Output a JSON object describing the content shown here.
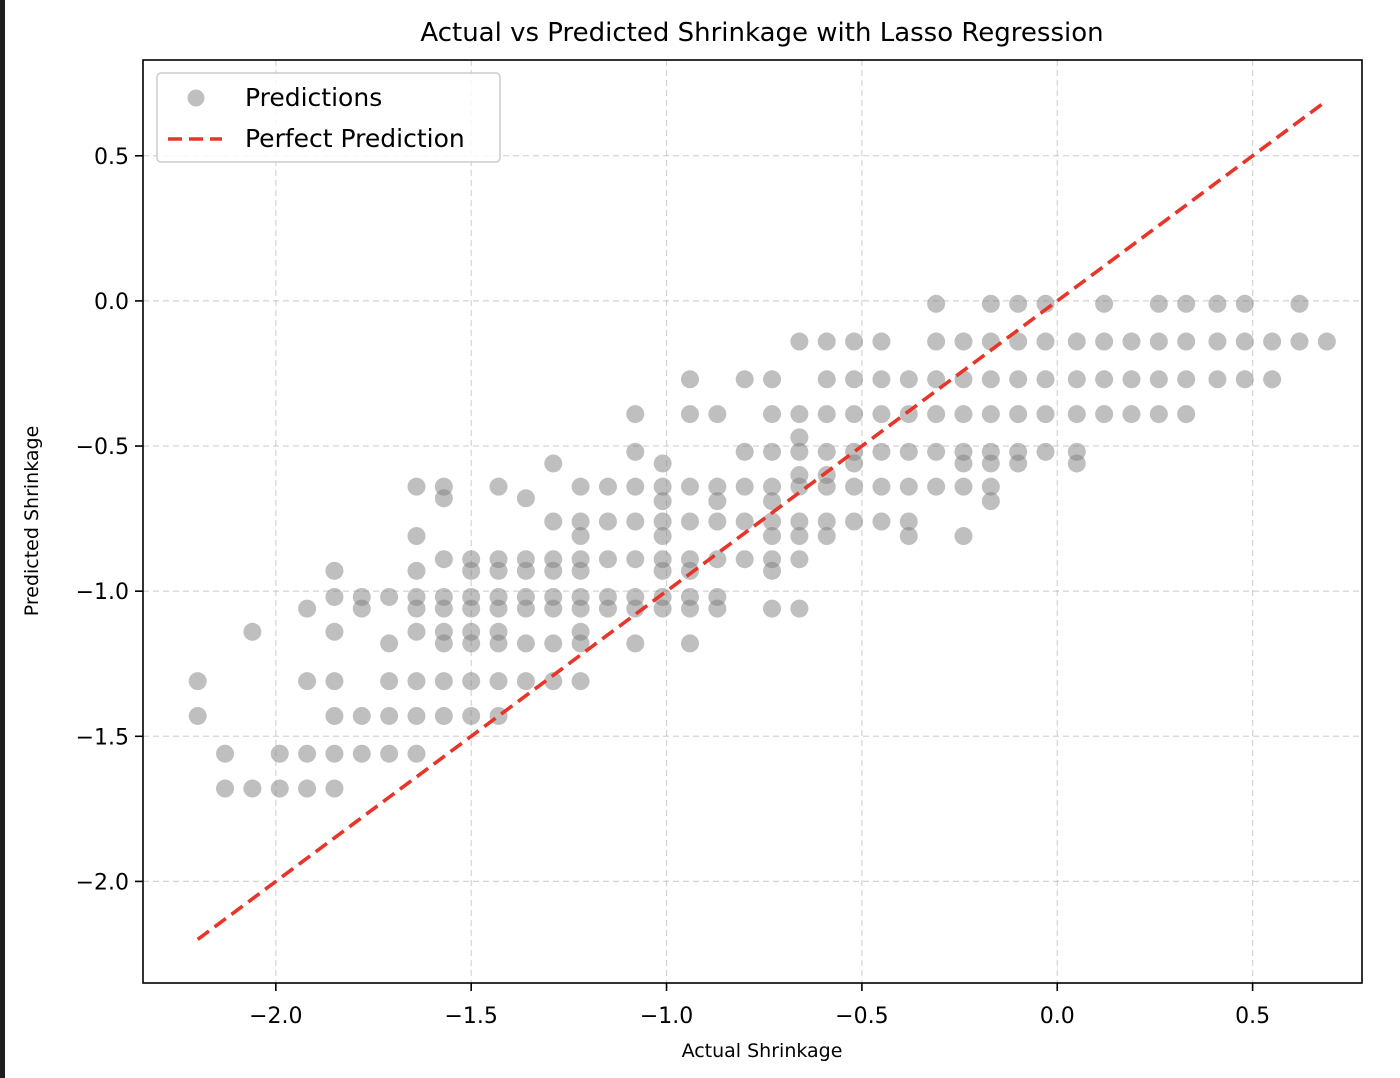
{
  "chart_data": {
    "type": "scatter",
    "title": "Actual vs Predicted Shrinkage with Lasso Regression",
    "xlabel": "Actual Shrinkage",
    "ylabel": "Predicted Shrinkage",
    "xlim": [
      -2.34,
      0.78
    ],
    "ylim": [
      -2.35,
      0.83
    ],
    "x_ticks": [
      -2.0,
      -1.5,
      -1.0,
      -0.5,
      0.0,
      0.5
    ],
    "y_ticks": [
      -2.0,
      -1.5,
      -1.0,
      -0.5,
      0.0,
      0.5
    ],
    "x_tick_labels": [
      "−2.0",
      "−1.5",
      "−1.0",
      "−0.5",
      "0.0",
      "0.5"
    ],
    "y_tick_labels": [
      "−2.0",
      "−1.5",
      "−1.0",
      "−0.5",
      "0.0",
      "0.5"
    ],
    "grid": true,
    "legend_position": "top-left",
    "series": [
      {
        "name": "Predictions",
        "kind": "scatter",
        "color": "#808080",
        "alpha": 0.5,
        "points": [
          [
            -2.2,
            -1.31
          ],
          [
            -2.2,
            -1.43
          ],
          [
            -2.13,
            -1.56
          ],
          [
            -2.13,
            -1.68
          ],
          [
            -2.06,
            -1.68
          ],
          [
            -2.06,
            -1.14
          ],
          [
            -1.99,
            -1.56
          ],
          [
            -1.99,
            -1.68
          ],
          [
            -1.92,
            -1.56
          ],
          [
            -1.92,
            -1.68
          ],
          [
            -1.92,
            -1.31
          ],
          [
            -1.92,
            -1.06
          ],
          [
            -1.85,
            -1.56
          ],
          [
            -1.85,
            -1.68
          ],
          [
            -1.85,
            -1.43
          ],
          [
            -1.85,
            -1.31
          ],
          [
            -1.85,
            -1.14
          ],
          [
            -1.85,
            -1.02
          ],
          [
            -1.85,
            -0.93
          ],
          [
            -1.78,
            -1.56
          ],
          [
            -1.78,
            -1.43
          ],
          [
            -1.78,
            -1.02
          ],
          [
            -1.78,
            -1.06
          ],
          [
            -1.71,
            -1.56
          ],
          [
            -1.71,
            -1.43
          ],
          [
            -1.71,
            -1.31
          ],
          [
            -1.71,
            -1.18
          ],
          [
            -1.71,
            -1.02
          ],
          [
            -1.64,
            -1.56
          ],
          [
            -1.64,
            -1.43
          ],
          [
            -1.64,
            -1.31
          ],
          [
            -1.64,
            -1.14
          ],
          [
            -1.64,
            -1.02
          ],
          [
            -1.64,
            -1.06
          ],
          [
            -1.64,
            -0.93
          ],
          [
            -1.64,
            -0.81
          ],
          [
            -1.64,
            -0.64
          ],
          [
            -1.57,
            -1.43
          ],
          [
            -1.57,
            -1.31
          ],
          [
            -1.57,
            -1.18
          ],
          [
            -1.57,
            -1.14
          ],
          [
            -1.57,
            -1.02
          ],
          [
            -1.57,
            -1.06
          ],
          [
            -1.57,
            -0.89
          ],
          [
            -1.57,
            -0.64
          ],
          [
            -1.57,
            -0.68
          ],
          [
            -1.5,
            -1.43
          ],
          [
            -1.5,
            -1.31
          ],
          [
            -1.5,
            -1.18
          ],
          [
            -1.5,
            -1.14
          ],
          [
            -1.5,
            -1.02
          ],
          [
            -1.5,
            -1.06
          ],
          [
            -1.5,
            -0.93
          ],
          [
            -1.5,
            -0.89
          ],
          [
            -1.43,
            -1.43
          ],
          [
            -1.43,
            -1.31
          ],
          [
            -1.43,
            -1.18
          ],
          [
            -1.43,
            -1.14
          ],
          [
            -1.43,
            -1.02
          ],
          [
            -1.43,
            -1.06
          ],
          [
            -1.43,
            -0.93
          ],
          [
            -1.43,
            -0.89
          ],
          [
            -1.43,
            -0.64
          ],
          [
            -1.36,
            -1.31
          ],
          [
            -1.36,
            -1.18
          ],
          [
            -1.36,
            -1.02
          ],
          [
            -1.36,
            -1.06
          ],
          [
            -1.36,
            -0.93
          ],
          [
            -1.36,
            -0.89
          ],
          [
            -1.36,
            -0.68
          ],
          [
            -1.29,
            -1.31
          ],
          [
            -1.29,
            -1.18
          ],
          [
            -1.29,
            -1.02
          ],
          [
            -1.29,
            -1.06
          ],
          [
            -1.29,
            -0.93
          ],
          [
            -1.29,
            -0.89
          ],
          [
            -1.29,
            -0.76
          ],
          [
            -1.29,
            -0.56
          ],
          [
            -1.22,
            -1.31
          ],
          [
            -1.22,
            -1.18
          ],
          [
            -1.22,
            -1.14
          ],
          [
            -1.22,
            -1.02
          ],
          [
            -1.22,
            -1.06
          ],
          [
            -1.22,
            -0.93
          ],
          [
            -1.22,
            -0.89
          ],
          [
            -1.22,
            -0.81
          ],
          [
            -1.22,
            -0.76
          ],
          [
            -1.22,
            -0.64
          ],
          [
            -1.15,
            -1.02
          ],
          [
            -1.15,
            -1.06
          ],
          [
            -1.15,
            -0.89
          ],
          [
            -1.15,
            -0.76
          ],
          [
            -1.15,
            -0.64
          ],
          [
            -1.08,
            -1.18
          ],
          [
            -1.08,
            -1.02
          ],
          [
            -1.08,
            -1.06
          ],
          [
            -1.08,
            -0.89
          ],
          [
            -1.08,
            -0.76
          ],
          [
            -1.08,
            -0.64
          ],
          [
            -1.08,
            -0.52
          ],
          [
            -1.08,
            -0.39
          ],
          [
            -1.01,
            -1.02
          ],
          [
            -1.01,
            -1.06
          ],
          [
            -1.01,
            -0.93
          ],
          [
            -1.01,
            -0.89
          ],
          [
            -1.01,
            -0.81
          ],
          [
            -1.01,
            -0.76
          ],
          [
            -1.01,
            -0.69
          ],
          [
            -1.01,
            -0.64
          ],
          [
            -1.01,
            -0.56
          ],
          [
            -0.94,
            -1.18
          ],
          [
            -0.94,
            -1.02
          ],
          [
            -0.94,
            -1.06
          ],
          [
            -0.94,
            -0.93
          ],
          [
            -0.94,
            -0.89
          ],
          [
            -0.94,
            -0.76
          ],
          [
            -0.94,
            -0.64
          ],
          [
            -0.94,
            -0.39
          ],
          [
            -0.94,
            -0.27
          ],
          [
            -0.87,
            -1.02
          ],
          [
            -0.87,
            -1.06
          ],
          [
            -0.87,
            -0.89
          ],
          [
            -0.87,
            -0.76
          ],
          [
            -0.87,
            -0.69
          ],
          [
            -0.87,
            -0.64
          ],
          [
            -0.87,
            -0.39
          ],
          [
            -0.8,
            -0.89
          ],
          [
            -0.8,
            -0.76
          ],
          [
            -0.8,
            -0.64
          ],
          [
            -0.8,
            -0.52
          ],
          [
            -0.8,
            -0.27
          ],
          [
            -0.73,
            -1.06
          ],
          [
            -0.73,
            -0.93
          ],
          [
            -0.73,
            -0.89
          ],
          [
            -0.73,
            -0.81
          ],
          [
            -0.73,
            -0.76
          ],
          [
            -0.73,
            -0.69
          ],
          [
            -0.73,
            -0.64
          ],
          [
            -0.73,
            -0.52
          ],
          [
            -0.73,
            -0.39
          ],
          [
            -0.73,
            -0.27
          ],
          [
            -0.66,
            -1.06
          ],
          [
            -0.66,
            -0.89
          ],
          [
            -0.66,
            -0.81
          ],
          [
            -0.66,
            -0.76
          ],
          [
            -0.66,
            -0.64
          ],
          [
            -0.66,
            -0.6
          ],
          [
            -0.66,
            -0.52
          ],
          [
            -0.66,
            -0.47
          ],
          [
            -0.66,
            -0.39
          ],
          [
            -0.66,
            -0.14
          ],
          [
            -0.59,
            -0.81
          ],
          [
            -0.59,
            -0.76
          ],
          [
            -0.59,
            -0.64
          ],
          [
            -0.59,
            -0.6
          ],
          [
            -0.59,
            -0.52
          ],
          [
            -0.59,
            -0.39
          ],
          [
            -0.59,
            -0.27
          ],
          [
            -0.59,
            -0.14
          ],
          [
            -0.52,
            -0.76
          ],
          [
            -0.52,
            -0.64
          ],
          [
            -0.52,
            -0.56
          ],
          [
            -0.52,
            -0.52
          ],
          [
            -0.52,
            -0.39
          ],
          [
            -0.52,
            -0.27
          ],
          [
            -0.52,
            -0.14
          ],
          [
            -0.45,
            -0.76
          ],
          [
            -0.45,
            -0.64
          ],
          [
            -0.45,
            -0.52
          ],
          [
            -0.45,
            -0.39
          ],
          [
            -0.45,
            -0.27
          ],
          [
            -0.45,
            -0.14
          ],
          [
            -0.38,
            -0.81
          ],
          [
            -0.38,
            -0.76
          ],
          [
            -0.38,
            -0.64
          ],
          [
            -0.38,
            -0.52
          ],
          [
            -0.38,
            -0.39
          ],
          [
            -0.38,
            -0.27
          ],
          [
            -0.31,
            -0.64
          ],
          [
            -0.31,
            -0.52
          ],
          [
            -0.31,
            -0.39
          ],
          [
            -0.31,
            -0.27
          ],
          [
            -0.31,
            -0.14
          ],
          [
            -0.31,
            -0.01
          ],
          [
            -0.24,
            -0.81
          ],
          [
            -0.24,
            -0.64
          ],
          [
            -0.24,
            -0.56
          ],
          [
            -0.24,
            -0.52
          ],
          [
            -0.24,
            -0.39
          ],
          [
            -0.24,
            -0.27
          ],
          [
            -0.24,
            -0.14
          ],
          [
            -0.17,
            -0.69
          ],
          [
            -0.17,
            -0.64
          ],
          [
            -0.17,
            -0.56
          ],
          [
            -0.17,
            -0.52
          ],
          [
            -0.17,
            -0.39
          ],
          [
            -0.17,
            -0.27
          ],
          [
            -0.17,
            -0.14
          ],
          [
            -0.17,
            -0.01
          ],
          [
            -0.1,
            -0.56
          ],
          [
            -0.1,
            -0.52
          ],
          [
            -0.1,
            -0.39
          ],
          [
            -0.1,
            -0.27
          ],
          [
            -0.1,
            -0.14
          ],
          [
            -0.1,
            -0.01
          ],
          [
            -0.03,
            -0.52
          ],
          [
            -0.03,
            -0.39
          ],
          [
            -0.03,
            -0.27
          ],
          [
            -0.03,
            -0.14
          ],
          [
            -0.03,
            -0.01
          ],
          [
            0.05,
            -0.56
          ],
          [
            0.05,
            -0.52
          ],
          [
            0.05,
            -0.39
          ],
          [
            0.05,
            -0.27
          ],
          [
            0.05,
            -0.14
          ],
          [
            0.12,
            -0.39
          ],
          [
            0.12,
            -0.27
          ],
          [
            0.12,
            -0.14
          ],
          [
            0.12,
            -0.01
          ],
          [
            0.19,
            -0.39
          ],
          [
            0.19,
            -0.27
          ],
          [
            0.19,
            -0.14
          ],
          [
            0.26,
            -0.39
          ],
          [
            0.26,
            -0.27
          ],
          [
            0.26,
            -0.14
          ],
          [
            0.26,
            -0.01
          ],
          [
            0.33,
            -0.39
          ],
          [
            0.33,
            -0.27
          ],
          [
            0.33,
            -0.14
          ],
          [
            0.33,
            -0.01
          ],
          [
            0.41,
            -0.27
          ],
          [
            0.41,
            -0.14
          ],
          [
            0.41,
            -0.01
          ],
          [
            0.48,
            -0.27
          ],
          [
            0.48,
            -0.14
          ],
          [
            0.48,
            -0.01
          ],
          [
            0.55,
            -0.27
          ],
          [
            0.55,
            -0.14
          ],
          [
            0.62,
            -0.14
          ],
          [
            0.62,
            -0.01
          ],
          [
            0.69,
            -0.14
          ]
        ]
      },
      {
        "name": "Perfect Prediction",
        "kind": "line",
        "color": "#e8352a",
        "style": "dashed",
        "x": [
          -2.2,
          0.69
        ],
        "y": [
          -2.2,
          0.69
        ]
      }
    ]
  }
}
